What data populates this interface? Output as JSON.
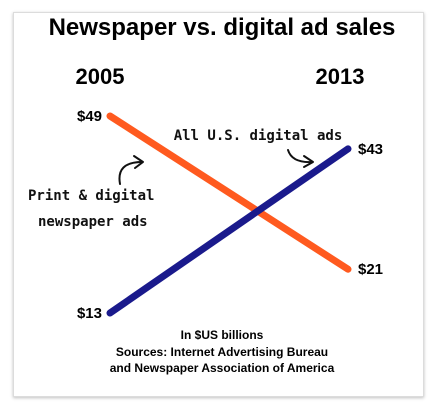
{
  "chart_data": {
    "type": "line",
    "title": "Newspaper vs. digital ad sales",
    "x": [
      "2005",
      "2013"
    ],
    "unit_note": "In $US billions",
    "sources": [
      "Sources: Internet Advertising Bureau",
      "and Newspaper Association of America"
    ],
    "series": [
      {
        "name": "Print & digital newspaper ads",
        "values": [
          49,
          21
        ],
        "labels": [
          "$49",
          "$21"
        ],
        "color": "#ff5a1f"
      },
      {
        "name": "All U.S. digital ads",
        "values": [
          13,
          43
        ],
        "labels": [
          "$13",
          "$43"
        ],
        "color": "#1a1a8c"
      }
    ],
    "annotations": {
      "digital": "All U.S. digital ads",
      "newspaper_line1": "Print & digital",
      "newspaper_line2": "newspaper ads"
    },
    "ylim": [
      13,
      49
    ],
    "grid": false,
    "legend": "none"
  }
}
